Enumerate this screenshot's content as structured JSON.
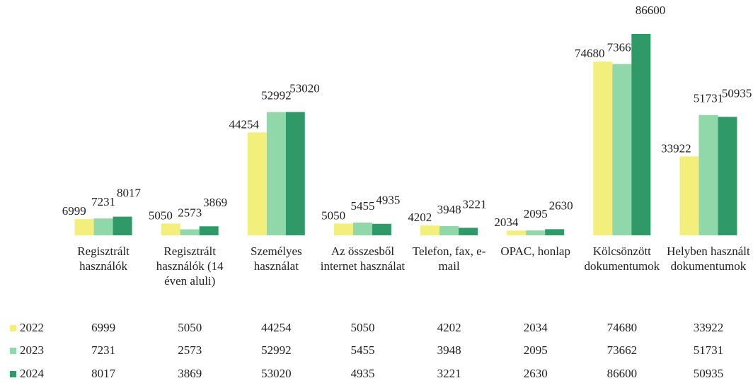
{
  "chart_data": {
    "type": "bar",
    "categories": [
      "Regisztrált használók",
      "Regisztrált használók (14 éven aluli)",
      "Személyes használat",
      "Az összesből internet használat",
      "Telefon, fax, e-mail",
      "OPAC, honlap",
      "Kölcsönzött dokumentumok",
      "Helyben használt dokumentumok"
    ],
    "series": [
      {
        "name": "2022",
        "color": "#f2ef7c",
        "values": [
          6999,
          5050,
          44254,
          5050,
          4202,
          2034,
          74680,
          33922
        ]
      },
      {
        "name": "2023",
        "color": "#90d8a9",
        "values": [
          7231,
          2573,
          52992,
          5455,
          3948,
          2095,
          73662,
          51731
        ]
      },
      {
        "name": "2024",
        "color": "#2f9a68",
        "values": [
          8017,
          3869,
          53020,
          4935,
          3221,
          2630,
          86600,
          50935
        ]
      }
    ],
    "data_table": true
  }
}
